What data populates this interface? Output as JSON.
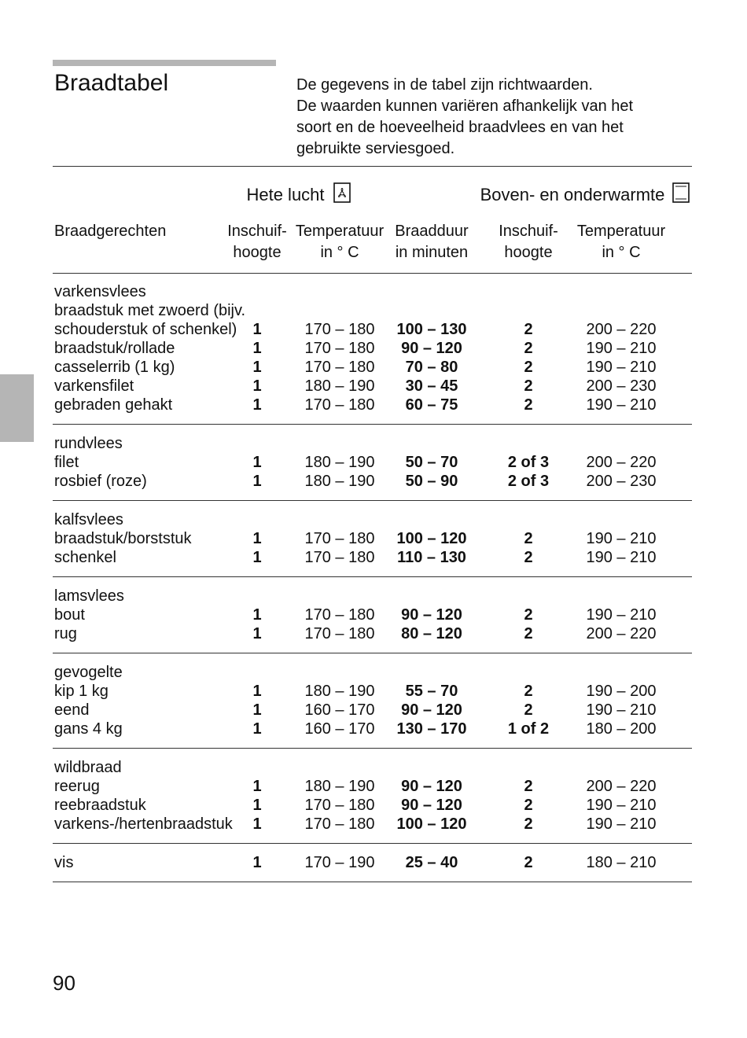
{
  "header": {
    "title": "Braadtabel",
    "intro": [
      "De gegevens in de tabel zijn richtwaarden.",
      "De waarden kunnen variëren afhankelijk van het",
      "soort en de hoeveelheid braadvlees en van het",
      "gebruikte serviesgoed."
    ]
  },
  "table": {
    "group_headers": [
      "Hete lucht",
      "Boven- en onderwarmte"
    ],
    "columns": [
      [
        "Braadgerechten"
      ],
      [
        "Inschuif-",
        "hoogte"
      ],
      [
        "Temperatuur",
        "in ° C"
      ],
      [
        "Braadduur",
        "in minuten"
      ],
      [
        "Inschuif-",
        "hoogte"
      ],
      [
        "Temperatuur",
        "in ° C"
      ]
    ],
    "sections": [
      {
        "name": "varkensvlees",
        "rows": [
          [
            "braadstuk met zwoerd (bijv.\nschouderstuk of schenkel)",
            "1",
            "170 – 180",
            "100 – 130",
            "2",
            "200 – 220"
          ],
          [
            "braadstuk/rollade",
            "1",
            "170 – 180",
            "90 – 120",
            "2",
            "190 – 210"
          ],
          [
            "casselerrib (1 kg)",
            "1",
            "170 – 180",
            "70 – 80",
            "2",
            "190 – 210"
          ],
          [
            "varkensfilet",
            "1",
            "180 – 190",
            "30 – 45",
            "2",
            "200 – 230"
          ],
          [
            "gebraden gehakt",
            "1",
            "170 – 180",
            "60 – 75",
            "2",
            "190 – 210"
          ]
        ]
      },
      {
        "name": "rundvlees",
        "rows": [
          [
            "filet",
            "1",
            "180 – 190",
            "50 – 70",
            "2 of 3",
            "200 – 220"
          ],
          [
            "rosbief (roze)",
            "1",
            "180 – 190",
            "50 – 90",
            "2 of 3",
            "200 – 230"
          ]
        ]
      },
      {
        "name": "kalfsvlees",
        "rows": [
          [
            "braadstuk/borststuk",
            "1",
            "170 – 180",
            "100 – 120",
            "2",
            "190 – 210"
          ],
          [
            "schenkel",
            "1",
            "170 – 180",
            "110 – 130",
            "2",
            "190 – 210"
          ]
        ]
      },
      {
        "name": "lamsvlees",
        "rows": [
          [
            "bout",
            "1",
            "170 – 180",
            "90 – 120",
            "2",
            "190 – 210"
          ],
          [
            "rug",
            "1",
            "170 – 180",
            "80 – 120",
            "2",
            "200 – 220"
          ]
        ]
      },
      {
        "name": "gevogelte",
        "rows": [
          [
            "kip 1 kg",
            "1",
            "180 – 190",
            "55 – 70",
            "2",
            "190 – 200"
          ],
          [
            "eend",
            "1",
            "160 – 170",
            "90 – 120",
            "2",
            "190 – 210"
          ],
          [
            "gans 4 kg",
            "1",
            "160 – 170",
            "130 – 170",
            "1 of 2",
            "180 – 200"
          ]
        ]
      },
      {
        "name": "wildbraad",
        "rows": [
          [
            "reerug",
            "1",
            "180 – 190",
            "90 – 120",
            "2",
            "200 – 220"
          ],
          [
            "reebraadstuk",
            "1",
            "170 – 180",
            "90 – 120",
            "2",
            "190 – 210"
          ],
          [
            "varkens-/hertenbraadstuk",
            "1",
            "170 – 180",
            "100 – 120",
            "2",
            "190 – 210"
          ]
        ]
      },
      {
        "name": "vis",
        "cells": [
          "1",
          "170 – 190",
          "25 – 40",
          "2",
          "180 – 210"
        ]
      }
    ]
  },
  "footer": {
    "page_number": "90"
  }
}
